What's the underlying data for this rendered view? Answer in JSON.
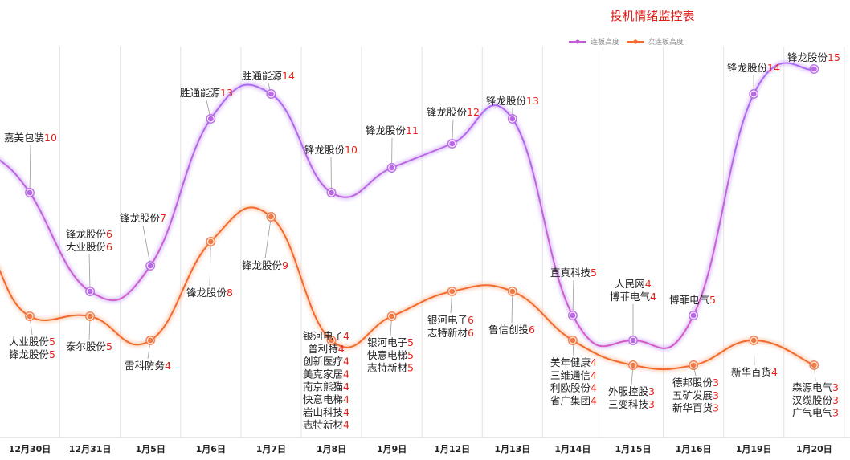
{
  "chart_data": {
    "type": "line",
    "title": "投机情绪监控表",
    "categories": [
      "12月30日",
      "12月31日",
      "1月5日",
      "1月6日",
      "1月7日",
      "1月8日",
      "1月9日",
      "1月12日",
      "1月13日",
      "1月14日",
      "1月15日",
      "1月16日",
      "1月19日",
      "1月20日"
    ],
    "series": [
      {
        "name": "连板高度",
        "color": "#b05cf0",
        "values": [
          10,
          6,
          7,
          13,
          14,
          10,
          11,
          12,
          13,
          5,
          4,
          5,
          14,
          15
        ],
        "labels": [
          [
            [
              "嘉美包装",
              "10"
            ]
          ],
          [
            [
              "锋龙股份",
              "6"
            ],
            [
              "大业股份",
              "6"
            ]
          ],
          [
            [
              "锋龙股份",
              "7"
            ]
          ],
          [
            [
              "胜通能源",
              "13"
            ]
          ],
          [
            [
              "胜通能源",
              "14"
            ]
          ],
          [
            [
              "锋龙股份",
              "10"
            ]
          ],
          [
            [
              "锋龙股份",
              "11"
            ]
          ],
          [
            [
              "锋龙股份",
              "12"
            ]
          ],
          [
            [
              "锋龙股份",
              "13"
            ]
          ],
          [
            [
              "直真科技",
              "5"
            ]
          ],
          [
            [
              "人民网",
              "4"
            ],
            [
              "博菲电气",
              "4"
            ]
          ],
          [
            [
              "博菲电气",
              "5"
            ]
          ],
          [
            [
              "锋龙股份",
              "14"
            ]
          ],
          [
            [
              "锋龙股份",
              "15"
            ]
          ]
        ]
      },
      {
        "name": "次连板高度",
        "color": "#f26b2e",
        "values": [
          5,
          5,
          4,
          8,
          9,
          4,
          5,
          6,
          6,
          4,
          3,
          3,
          4,
          3
        ],
        "labels": [
          [
            [
              "大业股份",
              "5"
            ],
            [
              "锋龙股份",
              "5"
            ]
          ],
          [
            [
              "泰尔股份",
              "5"
            ]
          ],
          [
            [
              "雷科防务",
              "4"
            ]
          ],
          [
            [
              "锋龙股份",
              "8"
            ]
          ],
          [
            [
              "锋龙股份",
              "9"
            ]
          ],
          [
            [
              "银河电子",
              "4"
            ],
            [
              "普利特",
              "4"
            ],
            [
              "创新医疗",
              "4"
            ],
            [
              "美克家居",
              "4"
            ],
            [
              "南京熊猫",
              "4"
            ],
            [
              "快意电梯",
              "4"
            ],
            [
              "岩山科技",
              "4"
            ],
            [
              "志特新材",
              "4"
            ]
          ],
          [
            [
              "银河电子",
              "5"
            ],
            [
              "快意电梯",
              "5"
            ],
            [
              "志特新材",
              "5"
            ]
          ],
          [
            [
              "银河电子",
              "6"
            ],
            [
              "志特新材",
              "6"
            ]
          ],
          [
            [
              "鲁信创投",
              "6"
            ]
          ],
          [
            [
              "美年健康",
              "4"
            ],
            [
              "三维通信",
              "4"
            ],
            [
              "利欧股份",
              "4"
            ],
            [
              "省广集团",
              "4"
            ]
          ],
          [
            [
              "外服控股",
              "3"
            ],
            [
              "三变科技",
              "3"
            ]
          ],
          [
            [
              "德邦股份",
              "3"
            ],
            [
              "五矿发展",
              "3"
            ],
            [
              "新华百货",
              "3"
            ]
          ],
          [
            [
              "新华百货",
              "4"
            ]
          ],
          [
            [
              "森源电气",
              "3"
            ],
            [
              "汉缆股份",
              "3"
            ],
            [
              "广气电气",
              "3"
            ]
          ]
        ]
      }
    ],
    "ylim": [
      3,
      15
    ],
    "grid": "vertical",
    "legend": "top-right",
    "xlabel": "",
    "ylabel": ""
  }
}
